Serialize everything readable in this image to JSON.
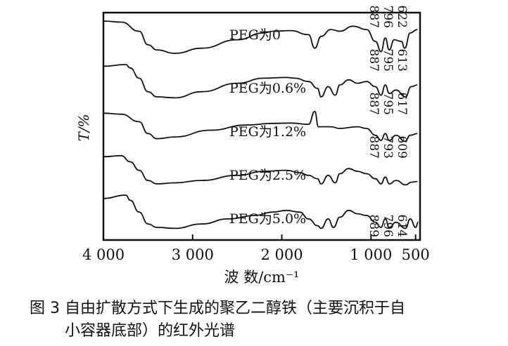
{
  "chart_data": {
    "type": "line",
    "title": "",
    "xlabel": "波 数/cm⁻¹",
    "ylabel": "T/%",
    "xlim": [
      4000,
      450
    ],
    "x_reversed": true,
    "xticks": [
      {
        "value": 4000,
        "label": "4 000"
      },
      {
        "value": 3000,
        "label": "3 000"
      },
      {
        "value": 2000,
        "label": "2 000"
      },
      {
        "value": 1000,
        "label": "1 000"
      },
      {
        "value": 500,
        "label": "500"
      }
    ],
    "grid": false,
    "legend": "none",
    "series": [
      {
        "name": "PEG为0",
        "offset": 1,
        "points": [
          [
            4000,
            1
          ],
          [
            3800,
            0.97
          ],
          [
            3600,
            0.7
          ],
          [
            3500,
            0.3
          ],
          [
            3400,
            0.15
          ],
          [
            3200,
            0.05
          ],
          [
            2900,
            0.2
          ],
          [
            2500,
            0.45
          ],
          [
            2200,
            0.65
          ],
          [
            2100,
            0.7
          ],
          [
            1900,
            0.72
          ],
          [
            1700,
            0.6
          ],
          [
            1630,
            0.2
          ],
          [
            1560,
            0.55
          ],
          [
            1450,
            0.75
          ],
          [
            1350,
            0.7
          ],
          [
            1200,
            0.85
          ],
          [
            1050,
            0.75
          ],
          [
            950,
            0.4
          ],
          [
            887,
            0.1
          ],
          [
            840,
            0.5
          ],
          [
            796,
            0.15
          ],
          [
            740,
            0.45
          ],
          [
            660,
            0.4
          ],
          [
            622,
            0.2
          ],
          [
            560,
            0.65
          ],
          [
            480,
            0.75
          ]
        ],
        "peaks": [
          "887",
          "796",
          "622"
        ]
      },
      {
        "name": "PEG为0.6%",
        "offset": 2,
        "points": [
          [
            4000,
            0.95
          ],
          [
            3750,
            1
          ],
          [
            3700,
            0.9
          ],
          [
            3600,
            0.6
          ],
          [
            3500,
            0.2
          ],
          [
            3400,
            0.05
          ],
          [
            3200,
            0.02
          ],
          [
            2900,
            0.2
          ],
          [
            2500,
            0.45
          ],
          [
            2200,
            0.6
          ],
          [
            1950,
            0.62
          ],
          [
            1850,
            0.6
          ],
          [
            1700,
            0.5
          ],
          [
            1600,
            0.3
          ],
          [
            1560,
            0.05
          ],
          [
            1480,
            0.35
          ],
          [
            1400,
            0.1
          ],
          [
            1350,
            0.4
          ],
          [
            1250,
            0.55
          ],
          [
            1150,
            0.45
          ],
          [
            1050,
            0.5
          ],
          [
            950,
            0.35
          ],
          [
            887,
            0.1
          ],
          [
            840,
            0.4
          ],
          [
            795,
            0.15
          ],
          [
            720,
            0.25
          ],
          [
            613,
            0.05
          ],
          [
            550,
            0.35
          ],
          [
            480,
            0.4
          ]
        ],
        "peaks": [
          "887",
          "795",
          "613"
        ]
      },
      {
        "name": "PEG为1.2%",
        "offset": 3,
        "points": [
          [
            4000,
            0.85
          ],
          [
            3800,
            0.82
          ],
          [
            3600,
            0.6
          ],
          [
            3500,
            0.25
          ],
          [
            3400,
            0.1
          ],
          [
            3200,
            0.15
          ],
          [
            2800,
            0.35
          ],
          [
            2400,
            0.5
          ],
          [
            2100,
            0.55
          ],
          [
            1900,
            0.56
          ],
          [
            1700,
            0.52
          ],
          [
            1630,
            0.9
          ],
          [
            1590,
            0.45
          ],
          [
            1450,
            0.45
          ],
          [
            1350,
            0.4
          ],
          [
            1150,
            0.45
          ],
          [
            1050,
            0.4
          ],
          [
            950,
            0.2
          ],
          [
            887,
            0.05
          ],
          [
            840,
            0.25
          ],
          [
            795,
            0.05
          ],
          [
            720,
            0.2
          ],
          [
            617,
            0.02
          ],
          [
            560,
            0.2
          ],
          [
            480,
            0.25
          ]
        ],
        "peaks": [
          "887",
          "795",
          "617"
        ]
      },
      {
        "name": "PEG为2.5%",
        "offset": 4,
        "points": [
          [
            4000,
            0.85
          ],
          [
            3800,
            0.88
          ],
          [
            3700,
            0.7
          ],
          [
            3600,
            0.45
          ],
          [
            3500,
            0.15
          ],
          [
            3400,
            0.05
          ],
          [
            3200,
            0.08
          ],
          [
            2900,
            0.15
          ],
          [
            2500,
            0.3
          ],
          [
            2200,
            0.42
          ],
          [
            1950,
            0.45
          ],
          [
            1800,
            0.38
          ],
          [
            1700,
            0.3
          ],
          [
            1600,
            0.2
          ],
          [
            1560,
            0.05
          ],
          [
            1480,
            0.3
          ],
          [
            1400,
            0.08
          ],
          [
            1350,
            0.35
          ],
          [
            1250,
            0.5
          ],
          [
            1150,
            0.42
          ],
          [
            1050,
            0.35
          ],
          [
            950,
            0.2
          ],
          [
            887,
            0.05
          ],
          [
            840,
            0.25
          ],
          [
            793,
            0.05
          ],
          [
            720,
            0.15
          ],
          [
            609,
            0.02
          ],
          [
            550,
            0.1
          ],
          [
            480,
            0.12
          ]
        ],
        "peaks": [
          "887",
          "793",
          "609"
        ]
      },
      {
        "name": "PEG为5.0%",
        "offset": 5,
        "points": [
          [
            4000,
            0.9
          ],
          [
            3750,
            1
          ],
          [
            3700,
            0.85
          ],
          [
            3600,
            0.5
          ],
          [
            3500,
            0.15
          ],
          [
            3400,
            0.05
          ],
          [
            3200,
            0.02
          ],
          [
            2900,
            0.15
          ],
          [
            2600,
            0.3
          ],
          [
            2300,
            0.4
          ],
          [
            2100,
            0.5
          ],
          [
            1950,
            0.55
          ],
          [
            1800,
            0.5
          ],
          [
            1700,
            0.3
          ],
          [
            1600,
            0.1
          ],
          [
            1560,
            0.02
          ],
          [
            1480,
            0.3
          ],
          [
            1420,
            0.05
          ],
          [
            1350,
            0.35
          ],
          [
            1250,
            0.55
          ],
          [
            1150,
            0.45
          ],
          [
            1050,
            0.4
          ],
          [
            950,
            0.2
          ],
          [
            889,
            0.05
          ],
          [
            840,
            0.3
          ],
          [
            796,
            0.05
          ],
          [
            720,
            0.2
          ],
          [
            614,
            0.02
          ],
          [
            560,
            0.3
          ],
          [
            500,
            0.05
          ],
          [
            470,
            0.2
          ]
        ],
        "peaks": [
          "889",
          "796",
          "614"
        ]
      }
    ]
  },
  "caption": {
    "number": "图 3",
    "line1": "自由扩散方式下生成的聚乙二醇铁（主要沉积于自",
    "line2": "小容器底部）的红外光谱"
  }
}
